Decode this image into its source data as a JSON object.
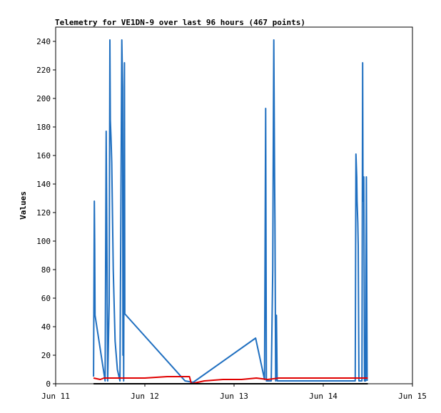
{
  "chart_data": {
    "type": "line",
    "title": "Telemetry for VE1DN-9 over last 96 hours (467 points)",
    "xlabel": "",
    "ylabel": "Values",
    "x_unit": "hours",
    "xlim": [
      0,
      96
    ],
    "ylim": [
      0,
      250
    ],
    "x_ticks": [
      {
        "x": 0,
        "label": "Jun 11"
      },
      {
        "x": 24,
        "label": "Jun 12"
      },
      {
        "x": 48,
        "label": "Jun 13"
      },
      {
        "x": 72,
        "label": "Jun 14"
      },
      {
        "x": 96,
        "label": "Jun 15"
      }
    ],
    "y_ticks": [
      0,
      20,
      40,
      60,
      80,
      100,
      120,
      140,
      160,
      180,
      200,
      220,
      240
    ],
    "grid": false,
    "legend": "none",
    "series": [
      {
        "color": "#1f6fc0",
        "points": [
          [
            10.2,
            5
          ],
          [
            10.4,
            128
          ],
          [
            10.5,
            97
          ],
          [
            10.6,
            48
          ],
          [
            13.3,
            2
          ],
          [
            13.6,
            177
          ],
          [
            13.8,
            90
          ],
          [
            14.0,
            2
          ],
          [
            14.4,
            57
          ],
          [
            14.6,
            241
          ],
          [
            14.7,
            185
          ],
          [
            14.9,
            172
          ],
          [
            15.1,
            155
          ],
          [
            15.5,
            80
          ],
          [
            16.0,
            30
          ],
          [
            16.6,
            10
          ],
          [
            17.3,
            2
          ],
          [
            17.8,
            241
          ],
          [
            18.0,
            208
          ],
          [
            18.1,
            20
          ],
          [
            18.2,
            80
          ],
          [
            18.3,
            2
          ],
          [
            18.5,
            225
          ],
          [
            18.6,
            49
          ],
          [
            34.8,
            2
          ],
          [
            37.0,
            1
          ],
          [
            53.8,
            32
          ],
          [
            56.2,
            3
          ],
          [
            56.5,
            193
          ],
          [
            56.7,
            2
          ],
          [
            58.0,
            2
          ],
          [
            58.4,
            80
          ],
          [
            58.6,
            193
          ],
          [
            58.7,
            241
          ],
          [
            58.9,
            145
          ],
          [
            59.0,
            113
          ],
          [
            59.2,
            2
          ],
          [
            59.4,
            48
          ],
          [
            59.6,
            2
          ],
          [
            80.6,
            2
          ],
          [
            80.8,
            161
          ],
          [
            81.0,
            145
          ],
          [
            81.1,
            128
          ],
          [
            81.3,
            113
          ],
          [
            81.4,
            97
          ],
          [
            81.6,
            2
          ],
          [
            82.4,
            2
          ],
          [
            82.6,
            225
          ],
          [
            82.7,
            128
          ],
          [
            82.9,
            145
          ],
          [
            83.0,
            80
          ],
          [
            83.1,
            2
          ],
          [
            83.4,
            2
          ],
          [
            83.6,
            145
          ],
          [
            83.8,
            2
          ]
        ]
      },
      {
        "color": "#e00000",
        "points": [
          [
            10.2,
            4
          ],
          [
            12.0,
            3
          ],
          [
            13.0,
            4
          ],
          [
            18.0,
            4
          ],
          [
            24.0,
            4
          ],
          [
            30.0,
            5
          ],
          [
            36.0,
            5
          ],
          [
            36.5,
            0
          ],
          [
            40.0,
            2
          ],
          [
            45.0,
            3
          ],
          [
            50.0,
            3
          ],
          [
            54.0,
            4
          ],
          [
            57.0,
            3
          ],
          [
            60.0,
            4
          ],
          [
            66.0,
            4
          ],
          [
            72.0,
            4
          ],
          [
            78.0,
            4
          ],
          [
            81.0,
            4
          ],
          [
            84.0,
            4
          ]
        ]
      },
      {
        "color": "#000000",
        "points": [
          [
            10.2,
            0
          ],
          [
            84.0,
            0
          ]
        ]
      }
    ]
  }
}
